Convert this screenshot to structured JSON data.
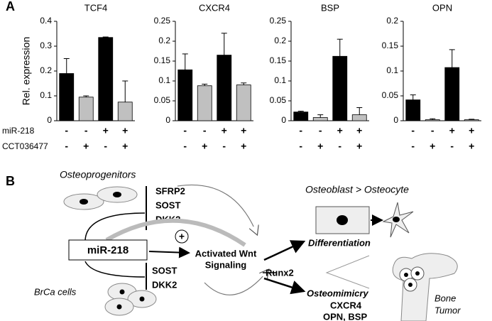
{
  "panel_a": "A",
  "ylabel": "Rel. expression",
  "row_labels": [
    "miR-218",
    "CCT036477"
  ],
  "chart_data": [
    {
      "type": "bar",
      "title": "TCF4",
      "values": [
        0.19,
        0.095,
        0.335,
        0.075
      ],
      "errors": [
        0.06,
        0.005,
        0.002,
        0.085
      ],
      "colors": [
        "#000000",
        "#c0c0c0",
        "#000000",
        "#c0c0c0"
      ],
      "ylim": [
        0,
        0.4
      ],
      "yticks": [
        0,
        0.1,
        0.2,
        0.3,
        0.4
      ],
      "conditions": [
        [
          "-",
          "-",
          "+",
          "+"
        ],
        [
          "-",
          "+",
          "-",
          "+"
        ]
      ]
    },
    {
      "type": "bar",
      "title": "CXCR4",
      "values": [
        0.128,
        0.088,
        0.165,
        0.09
      ],
      "errors": [
        0.04,
        0.004,
        0.055,
        0.005
      ],
      "colors": [
        "#000000",
        "#c0c0c0",
        "#000000",
        "#c0c0c0"
      ],
      "ylim": [
        0,
        0.25
      ],
      "yticks": [
        0,
        0.05,
        0.1,
        0.15,
        0.2,
        0.25
      ],
      "conditions": [
        [
          "-",
          "-",
          "+",
          "+"
        ],
        [
          "-",
          "+",
          "-",
          "+"
        ]
      ]
    },
    {
      "type": "bar",
      "title": "BSP",
      "values": [
        0.022,
        0.008,
        0.162,
        0.015
      ],
      "errors": [
        0.002,
        0.007,
        0.043,
        0.018
      ],
      "colors": [
        "#000000",
        "#c0c0c0",
        "#000000",
        "#c0c0c0"
      ],
      "ylim": [
        0,
        0.25
      ],
      "yticks": [
        0,
        0.05,
        0.1,
        0.15,
        0.2,
        0.25
      ],
      "conditions": [
        [
          "-",
          "-",
          "+",
          "+"
        ],
        [
          "-",
          "+",
          "-",
          "+"
        ]
      ]
    },
    {
      "type": "bar",
      "title": "OPN",
      "values": [
        0.042,
        0.002,
        0.107,
        0.002
      ],
      "errors": [
        0.01,
        0.002,
        0.036,
        0.001
      ],
      "colors": [
        "#000000",
        "#c0c0c0",
        "#000000",
        "#c0c0c0"
      ],
      "ylim": [
        0,
        0.2
      ],
      "yticks": [
        0,
        0.05,
        0.1,
        0.15,
        0.2
      ],
      "conditions": [
        [
          "-",
          "-",
          "+",
          "+"
        ],
        [
          "-",
          "+",
          "-",
          "+"
        ]
      ]
    }
  ],
  "diagram": {
    "label": "B",
    "osteoprogenitors": "Osteoprogenitors",
    "inhibitors_top": [
      "SFRP2",
      "SOST",
      "DKK2"
    ],
    "mirna": "miR-218",
    "plus": "+",
    "wnt": [
      "Activated Wnt",
      "Signaling"
    ],
    "inhibitors_bottom": [
      "SOST",
      "DKK2"
    ],
    "brca": "BrCa cells",
    "osteoblast": "Osteoblast > Osteocyte",
    "differentiation": "Differentiation",
    "runx2": "Runx2",
    "osteomimicry": "Osteomimicry",
    "markers": [
      "CXCR4",
      "OPN, BSP"
    ],
    "bone": [
      "Bone",
      "Tumor"
    ]
  }
}
